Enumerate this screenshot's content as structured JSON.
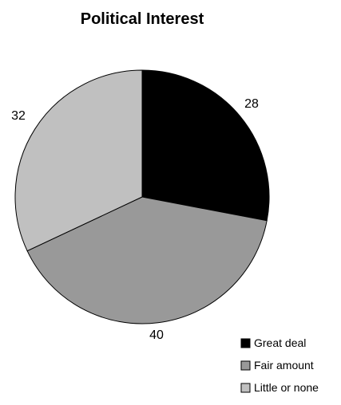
{
  "chart_data": {
    "type": "pie",
    "title": "Political Interest",
    "categories": [
      "Great deal",
      "Fair amount",
      "Little or none"
    ],
    "values": [
      28,
      40,
      32
    ],
    "colors": [
      "#000000",
      "#999999",
      "#c0c0c0"
    ],
    "start": "12 o'clock",
    "direction": "clockwise",
    "legend_position": "bottom-right",
    "legend_marker": "square"
  }
}
